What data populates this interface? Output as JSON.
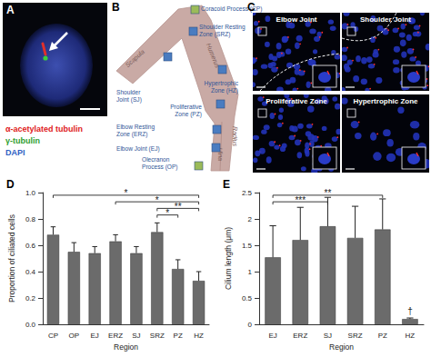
{
  "panels": {
    "A": {
      "label": "A",
      "stains": [
        {
          "text": "α-acetylated tubulin",
          "color": "#e0201b"
        },
        {
          "text": "γ-tubulin",
          "color": "#2f9e2f"
        },
        {
          "text": "DAPI",
          "color": "#2f5fc4"
        }
      ]
    },
    "B": {
      "label": "B",
      "bones": [
        "Scapula",
        "Humerus",
        "Radius",
        "Ulna"
      ],
      "regions": [
        {
          "lines": [
            "Coracoid Process (CP)"
          ],
          "color": "#9bbb59"
        },
        {
          "lines": [
            "Shoulder Resting",
            "Zone (SRZ)"
          ],
          "color": "#4a7cc0"
        },
        {
          "lines": [
            "Shoulder",
            "Joint (SJ)"
          ],
          "color": "#4a7cc0"
        },
        {
          "lines": [
            "Hypertrophic",
            "Zone (HZ)"
          ],
          "color": "#4a7cc0"
        },
        {
          "lines": [
            "Proliferative",
            "Zone (PZ)"
          ],
          "color": "#4a7cc0"
        },
        {
          "lines": [
            "Elbow Resting",
            "Zone (ERZ)"
          ],
          "color": "#4a7cc0"
        },
        {
          "lines": [
            "Elbow Joint (EJ)"
          ],
          "color": "#4a7cc0"
        },
        {
          "lines": [
            "Olecranon",
            "Process (OP)"
          ],
          "color": "#9bbb59"
        }
      ]
    },
    "C": {
      "label": "C",
      "images": [
        "Elbow Joint",
        "Shoulder Joint",
        "Proliferative Zone",
        "Hypertrophic Zone"
      ]
    }
  },
  "chart_data": [
    {
      "title": "D",
      "type": "bar",
      "categories": [
        "CP",
        "OP",
        "EJ",
        "ERZ",
        "SJ",
        "SRZ",
        "PZ",
        "HZ"
      ],
      "values": [
        0.68,
        0.55,
        0.54,
        0.63,
        0.54,
        0.7,
        0.42,
        0.33
      ],
      "errors": [
        0.06,
        0.07,
        0.05,
        0.05,
        0.05,
        0.07,
        0.07,
        0.07
      ],
      "color": "#6b6b6b",
      "xlabel": "Region",
      "ylabel": "Proportion of ciliated cells",
      "ylim": [
        0,
        1.0
      ],
      "yticks": [
        {
          "value": 0,
          "label": "0.0"
        },
        {
          "value": 0.2,
          "label": "0.2"
        },
        {
          "value": 0.4,
          "label": "0.4"
        },
        {
          "value": 0.6,
          "label": "0.6"
        },
        {
          "value": 0.8,
          "label": "0.8"
        },
        {
          "value": 1.0,
          "label": "1.0"
        }
      ],
      "grid": false,
      "significance": [
        {
          "from": "CP",
          "to": "HZ",
          "label": "*"
        },
        {
          "from": "ERZ",
          "to": "HZ",
          "label": "*"
        },
        {
          "from": "SRZ",
          "to": "HZ",
          "label": "**"
        },
        {
          "from": "SRZ",
          "to": "PZ",
          "label": "*"
        }
      ]
    },
    {
      "title": "E",
      "type": "bar",
      "categories": [
        "EJ",
        "ERZ",
        "SJ",
        "SRZ",
        "PZ",
        "HZ"
      ],
      "values": [
        1.27,
        1.6,
        1.86,
        1.64,
        1.8,
        0.1
      ],
      "errors": [
        0.6,
        0.62,
        0.55,
        0.6,
        0.58,
        0.02
      ],
      "color": "#6b6b6b",
      "xlabel": "Region",
      "ylabel": "Cilium length (μm)",
      "ylim": [
        0,
        2.5
      ],
      "yticks": [
        0,
        0.5,
        1,
        1.5,
        2,
        2.5
      ],
      "grid": false,
      "significance": [
        {
          "from": "EJ",
          "to": "PZ",
          "label": "**"
        },
        {
          "from": "EJ",
          "to": "SJ",
          "label": "***"
        }
      ],
      "annotations": [
        {
          "category": "HZ",
          "label": "†"
        }
      ]
    }
  ]
}
